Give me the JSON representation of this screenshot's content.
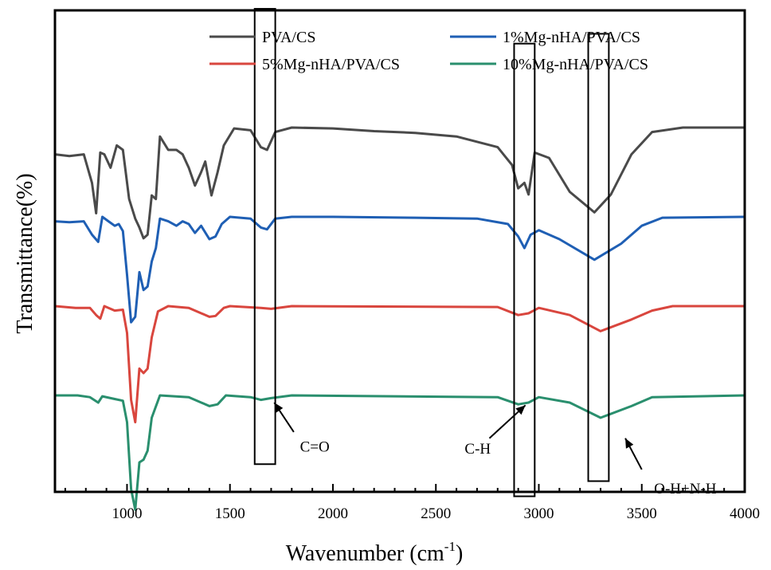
{
  "chart_data": {
    "type": "line",
    "xlabel": "Wavenumber (cm",
    "xlabel_sup": "-1",
    "xlabel_close": ")",
    "ylabel": "Transmittance(%)",
    "xlim": [
      650,
      4000
    ],
    "xticks": [
      "1000",
      "1500",
      "2000",
      "2500",
      "3000",
      "3500",
      "4000"
    ],
    "grid": false,
    "legend_position": "top",
    "series": [
      {
        "name": "PVA/CS",
        "color": "#4a4a4a",
        "offset": 3,
        "points": [
          [
            650,
            0.3
          ],
          [
            720,
            0.32
          ],
          [
            790,
            0.3
          ],
          [
            830,
            0.62
          ],
          [
            850,
            0.96
          ],
          [
            870,
            0.28
          ],
          [
            890,
            0.3
          ],
          [
            920,
            0.45
          ],
          [
            950,
            0.2
          ],
          [
            980,
            0.25
          ],
          [
            1010,
            0.8
          ],
          [
            1040,
            1.02
          ],
          [
            1060,
            1.12
          ],
          [
            1080,
            1.24
          ],
          [
            1100,
            1.2
          ],
          [
            1120,
            0.76
          ],
          [
            1140,
            0.8
          ],
          [
            1160,
            0.1
          ],
          [
            1200,
            0.25
          ],
          [
            1240,
            0.25
          ],
          [
            1270,
            0.3
          ],
          [
            1300,
            0.45
          ],
          [
            1330,
            0.65
          ],
          [
            1360,
            0.5
          ],
          [
            1380,
            0.38
          ],
          [
            1410,
            0.76
          ],
          [
            1440,
            0.5
          ],
          [
            1470,
            0.2
          ],
          [
            1520,
            0.01
          ],
          [
            1600,
            0.03
          ],
          [
            1650,
            0.22
          ],
          [
            1680,
            0.25
          ],
          [
            1720,
            0.05
          ],
          [
            1800,
            0.0
          ],
          [
            2000,
            0.01
          ],
          [
            2200,
            0.04
          ],
          [
            2400,
            0.06
          ],
          [
            2600,
            0.1
          ],
          [
            2800,
            0.22
          ],
          [
            2870,
            0.42
          ],
          [
            2900,
            0.68
          ],
          [
            2930,
            0.62
          ],
          [
            2950,
            0.75
          ],
          [
            2980,
            0.28
          ],
          [
            3050,
            0.34
          ],
          [
            3150,
            0.72
          ],
          [
            3270,
            0.95
          ],
          [
            3350,
            0.75
          ],
          [
            3450,
            0.3
          ],
          [
            3550,
            0.05
          ],
          [
            3700,
            0.0
          ],
          [
            4000,
            0.0
          ]
        ]
      },
      {
        "name": "1%Mg-nHA/PVA/CS",
        "color": "#1f5fb4",
        "offset": 2,
        "points": [
          [
            650,
            0.05
          ],
          [
            720,
            0.06
          ],
          [
            790,
            0.05
          ],
          [
            830,
            0.2
          ],
          [
            860,
            0.28
          ],
          [
            880,
            0.0
          ],
          [
            910,
            0.05
          ],
          [
            940,
            0.1
          ],
          [
            960,
            0.08
          ],
          [
            980,
            0.16
          ],
          [
            1000,
            0.65
          ],
          [
            1020,
            1.18
          ],
          [
            1040,
            1.12
          ],
          [
            1060,
            0.62
          ],
          [
            1080,
            0.82
          ],
          [
            1100,
            0.78
          ],
          [
            1120,
            0.5
          ],
          [
            1140,
            0.35
          ],
          [
            1160,
            0.02
          ],
          [
            1200,
            0.05
          ],
          [
            1240,
            0.1
          ],
          [
            1270,
            0.05
          ],
          [
            1300,
            0.08
          ],
          [
            1330,
            0.18
          ],
          [
            1360,
            0.1
          ],
          [
            1400,
            0.25
          ],
          [
            1430,
            0.22
          ],
          [
            1460,
            0.08
          ],
          [
            1500,
            0.0
          ],
          [
            1600,
            0.02
          ],
          [
            1650,
            0.12
          ],
          [
            1680,
            0.14
          ],
          [
            1720,
            0.02
          ],
          [
            1800,
            0.0
          ],
          [
            2000,
            0.0
          ],
          [
            2400,
            0.01
          ],
          [
            2700,
            0.02
          ],
          [
            2850,
            0.08
          ],
          [
            2900,
            0.22
          ],
          [
            2930,
            0.35
          ],
          [
            2960,
            0.2
          ],
          [
            3000,
            0.15
          ],
          [
            3100,
            0.25
          ],
          [
            3270,
            0.48
          ],
          [
            3400,
            0.3
          ],
          [
            3500,
            0.1
          ],
          [
            3600,
            0.01
          ],
          [
            4000,
            0.0
          ]
        ]
      },
      {
        "name": "5%Mg-nHA/PVA/CS",
        "color": "#d9463e",
        "offset": 1,
        "points": [
          [
            650,
            0.0
          ],
          [
            750,
            0.02
          ],
          [
            820,
            0.02
          ],
          [
            850,
            0.1
          ],
          [
            870,
            0.14
          ],
          [
            890,
            0.0
          ],
          [
            940,
            0.05
          ],
          [
            980,
            0.04
          ],
          [
            1000,
            0.3
          ],
          [
            1020,
            1.05
          ],
          [
            1040,
            1.3
          ],
          [
            1060,
            0.7
          ],
          [
            1080,
            0.75
          ],
          [
            1100,
            0.7
          ],
          [
            1120,
            0.35
          ],
          [
            1150,
            0.06
          ],
          [
            1200,
            0.0
          ],
          [
            1300,
            0.02
          ],
          [
            1400,
            0.12
          ],
          [
            1430,
            0.11
          ],
          [
            1470,
            0.02
          ],
          [
            1500,
            0.0
          ],
          [
            1650,
            0.02
          ],
          [
            1700,
            0.03
          ],
          [
            1800,
            0.0
          ],
          [
            2800,
            0.01
          ],
          [
            2900,
            0.1
          ],
          [
            2950,
            0.08
          ],
          [
            3000,
            0.02
          ],
          [
            3150,
            0.1
          ],
          [
            3300,
            0.28
          ],
          [
            3450,
            0.15
          ],
          [
            3550,
            0.05
          ],
          [
            3650,
            0.0
          ],
          [
            4000,
            0.0
          ]
        ]
      },
      {
        "name": "10%Mg-nHA/PVA/CS",
        "color": "#2a8f6e",
        "offset": 0,
        "points": [
          [
            650,
            0.0
          ],
          [
            760,
            0.0
          ],
          [
            820,
            0.02
          ],
          [
            860,
            0.08
          ],
          [
            880,
            0.01
          ],
          [
            940,
            0.04
          ],
          [
            980,
            0.06
          ],
          [
            1000,
            0.3
          ],
          [
            1020,
            1.05
          ],
          [
            1040,
            1.28
          ],
          [
            1060,
            0.75
          ],
          [
            1080,
            0.72
          ],
          [
            1100,
            0.62
          ],
          [
            1120,
            0.25
          ],
          [
            1160,
            0.0
          ],
          [
            1300,
            0.02
          ],
          [
            1400,
            0.12
          ],
          [
            1440,
            0.1
          ],
          [
            1480,
            0.0
          ],
          [
            1600,
            0.02
          ],
          [
            1650,
            0.05
          ],
          [
            1700,
            0.03
          ],
          [
            1800,
            0.0
          ],
          [
            2800,
            0.02
          ],
          [
            2900,
            0.1
          ],
          [
            2950,
            0.08
          ],
          [
            3000,
            0.02
          ],
          [
            3150,
            0.08
          ],
          [
            3300,
            0.25
          ],
          [
            3450,
            0.12
          ],
          [
            3550,
            0.02
          ],
          [
            4000,
            0.0
          ]
        ]
      }
    ],
    "annotations": [
      {
        "label": "C=O",
        "box_x": [
          1620,
          1720
        ],
        "box_span": [
          4.33,
          -0.77
        ],
        "text_pos": [
          1840,
          -0.63
        ],
        "arrow_from": [
          1810,
          -0.41
        ],
        "arrow_to": [
          1715,
          -0.08
        ]
      },
      {
        "label": "C-H",
        "box_x": [
          2880,
          2980
        ],
        "box_span": [
          3.94,
          -1.13
        ],
        "text_pos": [
          2640,
          -0.65
        ],
        "arrow_from": [
          2760,
          -0.48
        ],
        "arrow_to": [
          2935,
          -0.11
        ]
      },
      {
        "label": "O-H+N-H",
        "box_x": [
          3240,
          3340
        ],
        "box_span": [
          4.05,
          -0.96
        ],
        "text_pos": [
          3560,
          -1.1
        ],
        "arrow_from": [
          3500,
          -0.83
        ],
        "arrow_to": [
          3420,
          -0.48
        ]
      }
    ]
  }
}
